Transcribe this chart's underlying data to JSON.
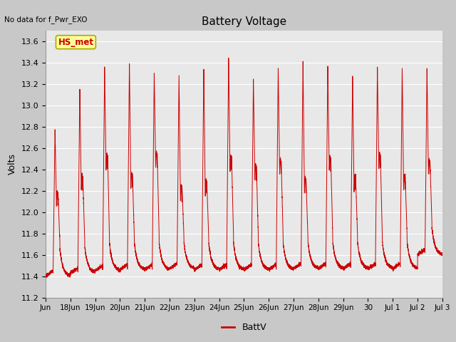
{
  "title": "Battery Voltage",
  "subtitle": "No data for f_Pwr_EXO",
  "ylabel": "Volts",
  "ylim": [
    11.2,
    13.7
  ],
  "yticks": [
    11.2,
    11.4,
    11.6,
    11.8,
    12.0,
    12.2,
    12.4,
    12.6,
    12.8,
    13.0,
    13.2,
    13.4,
    13.6
  ],
  "legend_label": "BattV",
  "line_color": "#cc0000",
  "fig_bg_color": "#c8c8c8",
  "plot_bg_color": "#e8e8e8",
  "annotation_text": "HS_met",
  "annotation_color": "#cc0000",
  "annotation_bg": "#ffff99",
  "annotation_edge": "#aaaa00",
  "x_tick_labels": [
    "Jun",
    "18Jun",
    "19Jun",
    "20Jun",
    "21Jun",
    "22Jun",
    "23Jun",
    "24Jun",
    "25Jun",
    "26Jun",
    "27Jun",
    "28Jun",
    "29Jun",
    "30",
    "Jul 1",
    "Jul 2",
    "Jul 3"
  ],
  "tick_positions": [
    0,
    1,
    2,
    3,
    4,
    5,
    6,
    7,
    8,
    9,
    10,
    11,
    12,
    13,
    14,
    15,
    16
  ],
  "n_days": 16,
  "xlim": [
    0,
    16
  ]
}
